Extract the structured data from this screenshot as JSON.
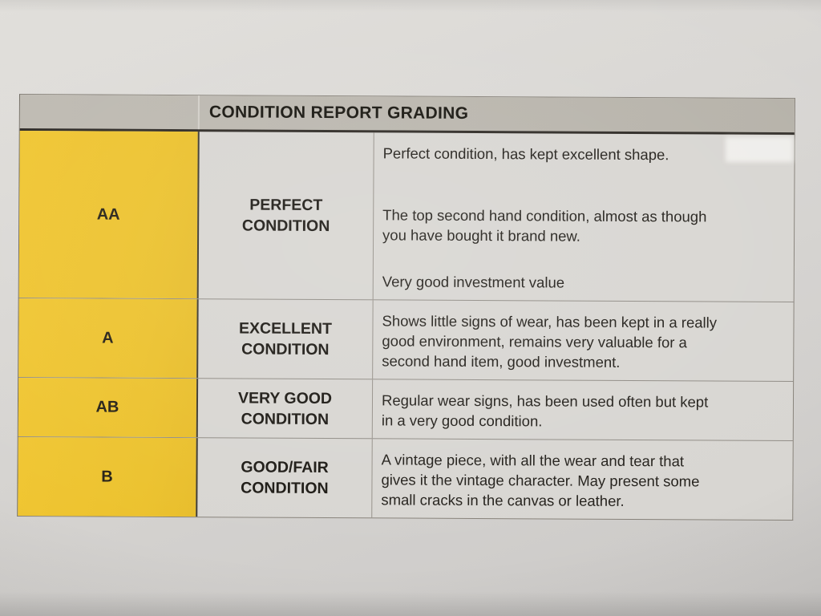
{
  "document": {
    "title": "CONDITION REPORT GRADING",
    "rows": [
      {
        "grade": "AA",
        "name": "PERFECT CONDITION",
        "paragraphs": [
          "Perfect condition, has kept excellent shape.",
          "The top second hand condition, almost as though\nyou have bought it brand new.",
          "Very good investment value"
        ]
      },
      {
        "grade": "A",
        "name": "EXCELLENT CONDITION",
        "paragraphs": [
          "Shows little signs of wear, has been kept in a really\ngood environment, remains very valuable for a\nsecond hand item, good investment."
        ]
      },
      {
        "grade": "AB",
        "name": "VERY GOOD CONDITION",
        "paragraphs": [
          "Regular wear signs, has been used often but kept\nin a very good condition."
        ]
      },
      {
        "grade": "B",
        "name": "GOOD/FAIR CONDITION",
        "paragraphs": [
          "A vintage piece, with all the wear and tear that\ngives it the vintage character. May present some\nsmall cracks in the canvas or leather."
        ]
      }
    ],
    "colors": {
      "grade_column_yellow": "#ecc22e",
      "header_band_gray": "#b9b5ad",
      "paper_gray": "#d7d5d2",
      "text": "#24211c"
    }
  }
}
